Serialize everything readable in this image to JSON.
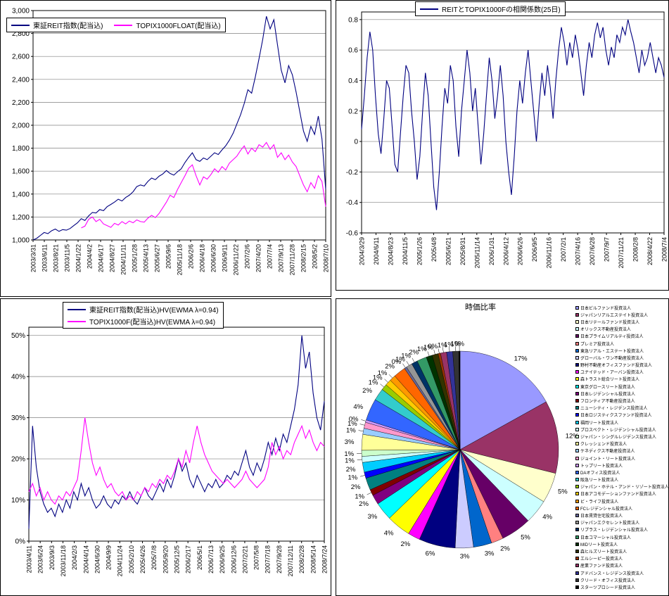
{
  "page": {
    "background": "#FFFFFF"
  },
  "chart_data": [
    {
      "id": "index-chart",
      "type": "line",
      "title": "",
      "xlabel": "",
      "ylabel": "",
      "grid": true,
      "legend_position": "top-left-overlay",
      "ylim": [
        1000,
        3000
      ],
      "yticks": [
        {
          "value": 1000,
          "label": "1,000"
        },
        {
          "value": 1200,
          "label": "1,200"
        },
        {
          "value": 1400,
          "label": "1,400"
        },
        {
          "value": 1600,
          "label": "1,600"
        },
        {
          "value": 1800,
          "label": "1,800"
        },
        {
          "value": 2000,
          "label": "2,000"
        },
        {
          "value": 2200,
          "label": "2,200"
        },
        {
          "value": 2400,
          "label": "2,400"
        },
        {
          "value": 2600,
          "label": "2,600"
        },
        {
          "value": 2800,
          "label": "2,800"
        },
        {
          "value": 3000,
          "label": "3,000"
        }
      ],
      "xtick_labels": [
        "2003/3/31",
        "2003/6/11",
        "2003/8/21",
        "2003/11/5",
        "2004/1/22",
        "2004/4/2",
        "2004/6/17",
        "2004/8/27",
        "2004/11/11",
        "2005/1/28",
        "2005/4/13",
        "2005/6/27",
        "2005/9/6",
        "2005/11/18",
        "2006/2/6",
        "2006/4/18",
        "2006/6/30",
        "2006/9/11",
        "2006/11/22",
        "2007/2/6",
        "2007/4/20",
        "2007/7/4",
        "2007/9/13",
        "2007/11/28",
        "2008/2/15",
        "2008/5/2",
        "2008/7/10"
      ],
      "series": [
        {
          "name": "東証REIT指数(配当込)",
          "color": "#000080",
          "values": [
            1000,
            1015,
            1040,
            1065,
            1055,
            1080,
            1095,
            1075,
            1090,
            1085,
            1100,
            1125,
            1150,
            1185,
            1170,
            1210,
            1240,
            1235,
            1265,
            1255,
            1290,
            1310,
            1330,
            1355,
            1340,
            1370,
            1390,
            1420,
            1465,
            1480,
            1470,
            1510,
            1540,
            1525,
            1555,
            1575,
            1605,
            1580,
            1565,
            1595,
            1620,
            1675,
            1720,
            1760,
            1700,
            1685,
            1715,
            1700,
            1730,
            1760,
            1745,
            1785,
            1820,
            1870,
            1930,
            2010,
            2090,
            2190,
            2310,
            2280,
            2420,
            2580,
            2750,
            2950,
            2840,
            2920,
            2700,
            2480,
            2370,
            2520,
            2440,
            2290,
            2120,
            1950,
            1860,
            1990,
            1920,
            2080,
            1880,
            1440
          ]
        },
        {
          "name": "TOPIX1000FLOAT(配当込)",
          "color": "#FF00FF",
          "values": [
            null,
            null,
            null,
            null,
            null,
            null,
            null,
            null,
            null,
            null,
            null,
            null,
            null,
            1105,
            1120,
            1180,
            1200,
            1160,
            1180,
            1140,
            1125,
            1110,
            1145,
            1130,
            1160,
            1140,
            1165,
            1150,
            1175,
            1160,
            1155,
            1190,
            1215,
            1195,
            1230,
            1280,
            1330,
            1390,
            1370,
            1440,
            1500,
            1560,
            1625,
            1655,
            1560,
            1480,
            1550,
            1530,
            1570,
            1620,
            1590,
            1640,
            1610,
            1670,
            1700,
            1730,
            1780,
            1820,
            1750,
            1800,
            1770,
            1830,
            1810,
            1850,
            1790,
            1830,
            1720,
            1760,
            1700,
            1740,
            1680,
            1640,
            1560,
            1480,
            1420,
            1500,
            1450,
            1560,
            1510,
            1290
          ]
        }
      ]
    },
    {
      "id": "correlation-chart",
      "type": "line",
      "title": "REITとTOPIX1000Fの相関係数(25日)",
      "xlabel": "",
      "ylabel": "",
      "grid": true,
      "legend_position": "top-center-overlay",
      "ylim": [
        -0.6,
        0.85
      ],
      "yticks": [
        {
          "value": -0.6,
          "label": "-0.6"
        },
        {
          "value": -0.4,
          "label": "-0.4"
        },
        {
          "value": -0.2,
          "label": "-0.2"
        },
        {
          "value": 0,
          "label": "0"
        },
        {
          "value": 0.2,
          "label": "0.2"
        },
        {
          "value": 0.4,
          "label": "0.4"
        },
        {
          "value": 0.6,
          "label": "0.6"
        },
        {
          "value": 0.8,
          "label": "0.8"
        }
      ],
      "xtick_labels": [
        "2004/3/29",
        "2004/6/11",
        "2004/8/23",
        "2004/11/5",
        "2005/1/26",
        "2005/4/8",
        "2005/6/21",
        "2005/8/31",
        "2005/11/14",
        "2006/1/31",
        "2006/4/12",
        "2006/6/26",
        "2006/9/5",
        "2006/11/16",
        "2007/2/1",
        "2007/4/16",
        "2007/6/28",
        "2007/9/7",
        "2007/11/21",
        "2008/2/8",
        "2008/4/22",
        "2008/7/4"
      ],
      "series": [
        {
          "name": "REITとTOPIX1000Fの相関係数(25日)",
          "color": "#000080",
          "values": [
            0.08,
            0.3,
            0.55,
            0.72,
            0.6,
            0.3,
            0.05,
            -0.08,
            0.15,
            0.4,
            0.35,
            0.1,
            -0.15,
            -0.2,
            0.05,
            0.3,
            0.5,
            0.45,
            0.2,
            0.0,
            -0.25,
            -0.1,
            0.2,
            0.45,
            0.3,
            0.0,
            -0.3,
            -0.45,
            -0.2,
            0.1,
            0.35,
            0.25,
            0.5,
            0.4,
            0.1,
            -0.1,
            0.2,
            0.4,
            0.6,
            0.45,
            0.2,
            0.35,
            0.1,
            -0.15,
            0.05,
            0.3,
            0.55,
            0.4,
            0.15,
            0.3,
            0.5,
            0.3,
            0.0,
            -0.2,
            -0.35,
            -0.1,
            0.2,
            0.4,
            0.25,
            0.45,
            0.6,
            0.4,
            0.2,
            0.0,
            0.25,
            0.45,
            0.3,
            0.5,
            0.35,
            0.15,
            0.4,
            0.6,
            0.75,
            0.65,
            0.5,
            0.65,
            0.55,
            0.7,
            0.6,
            0.45,
            0.3,
            0.5,
            0.65,
            0.55,
            0.7,
            0.78,
            0.68,
            0.75,
            0.6,
            0.5,
            0.62,
            0.55,
            0.7,
            0.65,
            0.75,
            0.7,
            0.8,
            0.72,
            0.65,
            0.55,
            0.45,
            0.6,
            0.5,
            0.55,
            0.65,
            0.55,
            0.45,
            0.55,
            0.5,
            0.42
          ]
        }
      ]
    },
    {
      "id": "hv-chart",
      "type": "line",
      "title": "",
      "xlabel": "",
      "ylabel": "",
      "grid": true,
      "legend_position": "top-center-overlay",
      "ylim": [
        0,
        52
      ],
      "yticks": [
        {
          "value": 0,
          "label": "0%"
        },
        {
          "value": 10,
          "label": "10%"
        },
        {
          "value": 20,
          "label": "20%"
        },
        {
          "value": 30,
          "label": "30%"
        },
        {
          "value": 40,
          "label": "40%"
        },
        {
          "value": 50,
          "label": "50%"
        }
      ],
      "xtick_labels": [
        "2003/4/11",
        "2003/6/24",
        "2003/9/3",
        "2003/11/18",
        "2004/2/3",
        "2004/4/14",
        "2004/6/30",
        "2004/9/9",
        "2004/11/24",
        "2005/2/10",
        "2005/4/26",
        "2005/7/8",
        "2005/9/20",
        "2005/12/5",
        "2006/2/17",
        "2006/5/1",
        "2006/7/13",
        "2006/9/25",
        "2006/12/6",
        "2007/2/21",
        "2007/5/8",
        "2007/7/18",
        "2007/9/28",
        "2007/12/11",
        "2008/2/28",
        "2008/5/14",
        "2008/7/24"
      ],
      "series": [
        {
          "name": "東証REIT指数(配当込)HV(EWMA λ=0.94)",
          "color": "#000080",
          "values": [
            3,
            28,
            18,
            12,
            9,
            7,
            8,
            6,
            9,
            7,
            10,
            8,
            12,
            10,
            14,
            11,
            13,
            10,
            8,
            9,
            11,
            9,
            8,
            10,
            9,
            11,
            10,
            12,
            10,
            9,
            11,
            13,
            11,
            10,
            12,
            14,
            12,
            15,
            13,
            16,
            20,
            17,
            19,
            15,
            13,
            16,
            14,
            12,
            14,
            13,
            15,
            13,
            14,
            16,
            15,
            17,
            16,
            19,
            22,
            18,
            16,
            19,
            17,
            20,
            24,
            21,
            25,
            22,
            26,
            24,
            28,
            32,
            38,
            50,
            42,
            46,
            36,
            30,
            27,
            34
          ]
        },
        {
          "name": "TOPIX1000F(配当込)HV(EWMA λ=0.94)",
          "color": "#FF00FF",
          "values": [
            12,
            14,
            11,
            13,
            10,
            12,
            10,
            9,
            11,
            10,
            12,
            11,
            13,
            15,
            22,
            30,
            24,
            19,
            16,
            18,
            15,
            13,
            14,
            12,
            11,
            12,
            10,
            11,
            10,
            12,
            11,
            13,
            12,
            14,
            13,
            15,
            14,
            16,
            15,
            17,
            20,
            18,
            22,
            19,
            24,
            28,
            24,
            21,
            19,
            17,
            16,
            15,
            14,
            15,
            14,
            13,
            14,
            15,
            17,
            15,
            14,
            13,
            14,
            15,
            18,
            24,
            21,
            23,
            20,
            22,
            21,
            24,
            26,
            28,
            25,
            27,
            24,
            22,
            24,
            23
          ]
        }
      ]
    },
    {
      "id": "market-cap-pie",
      "type": "pie",
      "title": "時価比率",
      "legend_position": "right",
      "labels": [
        "日本ビルファンド投資法人",
        "ジャパンリアルエステイト投資法人",
        "日本リテールファンド投資法人",
        "オリックス不動産投資法人",
        "日本プライムリアルティ投資法人",
        "プレミア投資法人",
        "東急リアル・エステート投資法人",
        "グローバル・ワン不動産投資法人",
        "野村不動産オフィスファンド投資法人",
        "ユナイテッド・アーバン投資法人",
        "森トラスト総合リート投資法人",
        "東京グロースリート投資法人",
        "日本レジデンシャル投資法人",
        "フロンティア不動産投資法人",
        "ニューシティ・レジデンス投資法人",
        "日本ロジスティクスファンド投資法人",
        "福岡リート投資法人",
        "プロスペクト・レジデンシャル投資法人",
        "ジャパン・シングルレジデンス投資法人",
        "クレッシェンド投資法人",
        "ケネディクス不動産投資法人",
        "ジョイント・リート投資法人",
        "トップリート投資法人",
        "DAオフィス投資法人",
        "阪急リート投資法人",
        "ジャパン・ホテル・アンド・リゾート投資法人",
        "日本アコモデーションファンド投資法人",
        "ビ・ライフ投資法人",
        "FCレジデンシャル投資法人",
        "日本賃貸住宅投資法人",
        "ジャパンエクセレント投資法人",
        "リプラス・レジデンシャル投資法人",
        "日本コマーシャル投資法人",
        "MIDリート投資法人",
        "森ヒルズリート投資法人",
        "エルシーピー投資法人",
        "産業ファンド投資法人",
        "アドバンス・レジデンス投資法人",
        "クリード・オフィス投資法人",
        "スターツプロシード投資法人"
      ],
      "values": [
        17,
        12,
        5,
        4,
        5,
        2,
        3,
        3,
        6,
        2,
        4,
        3,
        1.6,
        1,
        2,
        1,
        1.6,
        1,
        1,
        2.6,
        1,
        1,
        0.4,
        3.6,
        2,
        1,
        1,
        1,
        2,
        0.4,
        1,
        1,
        1.6,
        1,
        1,
        0.4,
        1,
        1,
        1,
        0.2
      ],
      "pct_labels": [
        "17%",
        "12%",
        "5%",
        "4%",
        "5%",
        "2%",
        "3%",
        "3%",
        "6%",
        "2%",
        "4%",
        "3%",
        "2%",
        "1%",
        "2%",
        "1%",
        "2%",
        "1%",
        "1%",
        "3%",
        "1%",
        "1%",
        "0%",
        "4%",
        "2%",
        "1%",
        "1%",
        "1%",
        "2%",
        "0%",
        "1%",
        "1%",
        "2%",
        "1%",
        "1%",
        "0%",
        "1%",
        "1%",
        "1%",
        "0%"
      ],
      "colors": [
        "#9999FF",
        "#993366",
        "#FFFFCC",
        "#CCFFFF",
        "#660066",
        "#FF8080",
        "#0066CC",
        "#CCCCFF",
        "#000080",
        "#FF00FF",
        "#FFFF00",
        "#00FFFF",
        "#800080",
        "#800000",
        "#008080",
        "#0000FF",
        "#00CCFF",
        "#CCFFFF",
        "#CCFFCC",
        "#FFFF99",
        "#99CCFF",
        "#FF99CC",
        "#CC99FF",
        "#3366FF",
        "#33CCCC",
        "#99CC00",
        "#FFCC00",
        "#FF9900",
        "#FF6600",
        "#666699",
        "#969696",
        "#003366",
        "#339966",
        "#003300",
        "#333300",
        "#993300",
        "#993366",
        "#333399",
        "#333333",
        "#000000"
      ]
    }
  ]
}
